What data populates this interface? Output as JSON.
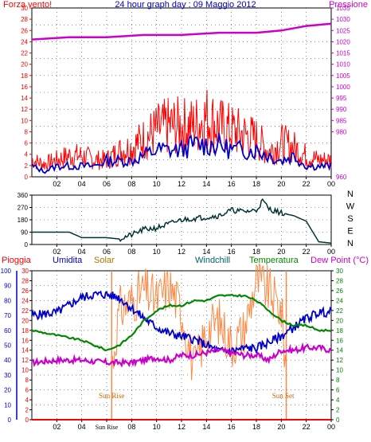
{
  "colors": {
    "wind": "#ff0000",
    "gust": "#0000cc",
    "pressure": "#cc00cc",
    "direction": "#003333",
    "rain": "#ff0000",
    "humidity": "#0000cc",
    "solar": "#ff8844",
    "windchill": "#006666",
    "temperature": "#008800",
    "dewpoint": "#cc00cc",
    "sun": "#ff8844",
    "grid": "#000000"
  },
  "chart_data": [
    {
      "type": "line",
      "title": "24 hour graph day : 09 Maggio 2012",
      "left_label": "Forza vento!",
      "right_label": "Pressione",
      "x_ticks": [
        "02",
        "04",
        "06",
        "08",
        "10",
        "12",
        "14",
        "16",
        "18",
        "20",
        "22",
        "00"
      ],
      "ylim_left": [
        0,
        30
      ],
      "yticks_left": [
        "0",
        "2",
        "4",
        "6",
        "8",
        "10",
        "12",
        "14",
        "16",
        "18",
        "20",
        "22",
        "24",
        "26",
        "28",
        "30"
      ],
      "ylim_right": [
        960,
        1035
      ],
      "yticks_right": [
        "980",
        "985",
        "990",
        "995",
        "1000",
        "1005",
        "1010",
        "1015",
        "1020",
        "1025",
        "1030",
        "1035"
      ],
      "series": [
        {
          "name": "Pressione",
          "x": [
            0,
            3,
            6,
            9,
            12,
            15,
            18,
            20,
            22,
            24
          ],
          "y": [
            1021,
            1022,
            1022,
            1023,
            1023,
            1024,
            1024,
            1025,
            1027,
            1028
          ]
        },
        {
          "x": [
            0,
            1,
            2,
            3,
            4,
            5,
            6,
            7,
            8,
            9,
            10,
            11,
            12,
            13,
            14,
            15,
            16,
            17,
            18,
            19,
            20,
            21,
            22,
            23,
            24
          ],
          "y": [
            4,
            3,
            4,
            5,
            5,
            4,
            4,
            6,
            7,
            9,
            11,
            12,
            12,
            12,
            14,
            12,
            11,
            10,
            9,
            6,
            8,
            7,
            5,
            4,
            4
          ]
        },
        {
          "x": [
            0,
            1,
            2,
            3,
            4,
            5,
            6,
            7,
            8,
            9,
            10,
            11,
            12,
            13,
            14,
            15,
            16,
            17,
            18,
            19,
            20,
            21,
            22,
            23,
            24
          ],
          "y": [
            2,
            1,
            2,
            2,
            2,
            2,
            3,
            3,
            3,
            4,
            5,
            5,
            5,
            6,
            6,
            6,
            5,
            5,
            5,
            4,
            3,
            4,
            2,
            2,
            2
          ]
        }
      ]
    },
    {
      "type": "line",
      "x_ticks": [
        "02",
        "04",
        "06",
        "08",
        "10",
        "12",
        "14",
        "16",
        "18",
        "20",
        "22",
        "00"
      ],
      "ylim": [
        0,
        360
      ],
      "yticks": [
        "0",
        "90",
        "180",
        "270",
        "360"
      ],
      "direction_labels": [
        "N",
        "W",
        "S",
        "E",
        "N"
      ],
      "series": [
        {
          "x": [
            0,
            2,
            3,
            4,
            5,
            6,
            7,
            8,
            9,
            10,
            11,
            12,
            13,
            14,
            15,
            16,
            17,
            18,
            18.5,
            19,
            20,
            21,
            22,
            23,
            24
          ],
          "y": [
            90,
            90,
            90,
            50,
            50,
            50,
            40,
            70,
            110,
            120,
            150,
            180,
            190,
            200,
            210,
            250,
            240,
            250,
            320,
            260,
            230,
            210,
            170,
            20,
            10
          ]
        }
      ]
    },
    {
      "type": "line",
      "labels": {
        "rain": "Pioggia",
        "humidity": "Umidita",
        "solar": "Solar",
        "windchill": "Windchill",
        "temperature": "Temperatura",
        "dewpoint": "Dew Point (°C)"
      },
      "x_ticks": [
        "02",
        "04",
        "Sun Rise",
        "08",
        "10",
        "12",
        "14",
        "16",
        "18",
        "20",
        "22",
        "00"
      ],
      "annotations": [
        "Sun Rise",
        "Sun Set"
      ],
      "sunrise_hour": 6.4,
      "sunset_hour": 20.4,
      "ylim_humidity": [
        0,
        100
      ],
      "yticks_humidity": [
        "0",
        "10",
        "20",
        "30",
        "40",
        "50",
        "60",
        "70",
        "80",
        "90",
        "100"
      ],
      "ylim_temp": [
        0,
        30
      ],
      "yticks_temp": [
        "0",
        "2",
        "4",
        "6",
        "8",
        "10",
        "12",
        "14",
        "16",
        "18",
        "20",
        "22",
        "24",
        "26",
        "28",
        "30"
      ],
      "yticks_right": [
        "0",
        "2",
        "4",
        "6",
        "8",
        "10",
        "12",
        "14",
        "16",
        "18",
        "20",
        "22",
        "24",
        "26",
        "28",
        "30"
      ],
      "series": [
        {
          "name": "Umidita",
          "x": [
            0,
            2,
            4,
            5,
            6,
            7,
            8,
            9,
            10,
            11,
            12,
            13,
            14,
            15,
            16,
            17,
            18,
            19,
            20,
            21,
            22,
            23,
            24
          ],
          "y": [
            70,
            72,
            82,
            84,
            84,
            82,
            75,
            68,
            62,
            58,
            56,
            54,
            50,
            46,
            46,
            48,
            48,
            52,
            56,
            62,
            68,
            72,
            72
          ]
        },
        {
          "name": "Temperatura",
          "x": [
            0,
            2,
            4,
            5,
            6,
            7,
            8,
            9,
            10,
            11,
            12,
            13,
            14,
            15,
            16,
            17,
            18,
            19,
            20,
            21,
            22,
            23,
            24
          ],
          "y": [
            18,
            17,
            16,
            15,
            14,
            15,
            17,
            20,
            22,
            23,
            23,
            24,
            24,
            25,
            25,
            25,
            24,
            22,
            20,
            19,
            19,
            18,
            18
          ]
        },
        {
          "name": "Dew Point (°C)",
          "x": [
            0,
            2,
            4,
            6,
            7,
            8,
            9,
            10,
            11,
            12,
            13,
            14,
            15,
            16,
            17,
            18,
            19,
            20,
            21,
            22,
            23,
            24
          ],
          "y": [
            11.5,
            12,
            12,
            11.5,
            11.5,
            11.5,
            12,
            12.5,
            12,
            13,
            13,
            13.5,
            14,
            13.5,
            13,
            13,
            12,
            14,
            14,
            14.5,
            14.5,
            14
          ]
        },
        {
          "name": "Solar",
          "x": [
            6.4,
            7,
            8,
            9,
            10,
            11,
            12,
            13,
            14,
            15,
            16,
            17,
            18,
            19,
            20,
            20.4
          ],
          "y": [
            10,
            22,
            24,
            26,
            24,
            27,
            22,
            10,
            18,
            20,
            15,
            18,
            28,
            26,
            22,
            10
          ]
        },
        {
          "name": "Pioggia",
          "x": [
            0,
            24
          ],
          "y": [
            0,
            0
          ]
        }
      ]
    }
  ]
}
